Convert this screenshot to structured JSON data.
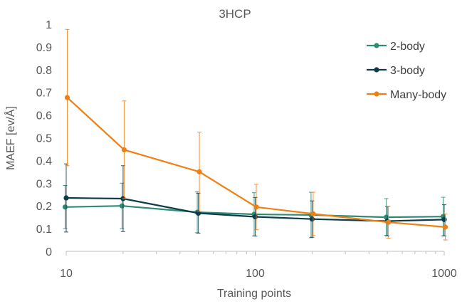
{
  "chart_data": {
    "type": "line",
    "title": "3HCP",
    "xlabel": "Training points",
    "ylabel": "MAEF [ev/Å]",
    "x_scale": "log",
    "xlim": [
      10,
      1000
    ],
    "ylim": [
      0,
      1
    ],
    "x_ticks": [
      10,
      100,
      1000
    ],
    "x_tick_labels": [
      "10",
      "100",
      "1000"
    ],
    "y_ticks": [
      0,
      0.1,
      0.2,
      0.3,
      0.4,
      0.5,
      0.6,
      0.7,
      0.8,
      0.9,
      1
    ],
    "y_tick_labels": [
      "0",
      "0.1",
      "0.2",
      "0.3",
      "0.4",
      "0.5",
      "0.6",
      "0.7",
      "0.8",
      "0.9",
      "1"
    ],
    "grid": false,
    "legend_position": "right",
    "x": [
      10,
      20,
      50,
      100,
      200,
      500,
      1000
    ],
    "series": [
      {
        "name": "2-body",
        "color": "#2e8b74",
        "values": [
          0.195,
          0.2,
          0.172,
          0.163,
          0.16,
          0.15,
          0.153
        ],
        "error_low": [
          0.095,
          0.1,
          0.09,
          0.095,
          0.1,
          0.08,
          0.085
        ],
        "error_high": [
          0.095,
          0.1,
          0.09,
          0.095,
          0.1,
          0.082,
          0.085
        ]
      },
      {
        "name": "3-body",
        "color": "#0d3b4a",
        "values": [
          0.235,
          0.232,
          0.168,
          0.152,
          0.142,
          0.133,
          0.14
        ],
        "error_low": [
          0.15,
          0.145,
          0.088,
          0.085,
          0.08,
          0.065,
          0.072
        ],
        "error_high": [
          0.15,
          0.145,
          0.088,
          0.085,
          0.08,
          0.065,
          0.065
        ]
      },
      {
        "name": "Many-body",
        "color": "#f07f12",
        "values": [
          0.677,
          0.447,
          0.35,
          0.195,
          0.165,
          0.128,
          0.107
        ],
        "error_low": [
          0.3,
          0.215,
          0.175,
          0.1,
          0.095,
          0.07,
          0.057
        ],
        "error_high": [
          0.3,
          0.215,
          0.175,
          0.1,
          0.095,
          0.07,
          0.057
        ]
      }
    ]
  }
}
